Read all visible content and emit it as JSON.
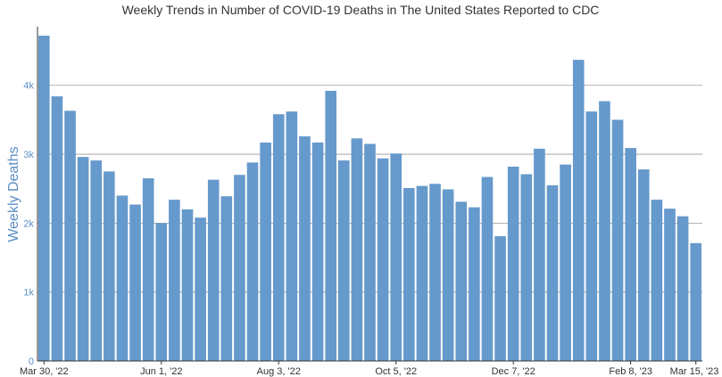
{
  "chart_data": {
    "type": "bar",
    "title": "Weekly Trends in Number of COVID-19 Deaths in The United States Reported to CDC",
    "xlabel": "",
    "ylabel": "Weekly Deaths",
    "ylim": [
      0,
      4850
    ],
    "yticks": [
      0,
      1000,
      2000,
      3000,
      4000
    ],
    "ytick_labels": [
      "0",
      "1k",
      "2k",
      "3k",
      "4k"
    ],
    "x_tick_labels": [
      "Mar 30, '22",
      "Jun 1, '22",
      "Aug 3, '22",
      "Oct 5, '22",
      "Dec 7, '22",
      "Feb 8, '23",
      "Mar 15, '23"
    ],
    "x_tick_indices": [
      0,
      9,
      18,
      27,
      36,
      45,
      50
    ],
    "bar_color": "#6699cc",
    "grid": true,
    "values": [
      4720,
      3840,
      3630,
      2960,
      2910,
      2750,
      2400,
      2270,
      2650,
      2000,
      2340,
      2200,
      2080,
      2630,
      2390,
      2700,
      2880,
      3170,
      3580,
      3620,
      3260,
      3170,
      3920,
      2910,
      3230,
      3150,
      2940,
      3010,
      2510,
      2540,
      2570,
      2490,
      2310,
      2230,
      2670,
      1810,
      2820,
      2710,
      3080,
      2550,
      2850,
      4370,
      3620,
      3770,
      3500,
      3090,
      2780,
      2340,
      2210,
      2100,
      1710
    ]
  }
}
